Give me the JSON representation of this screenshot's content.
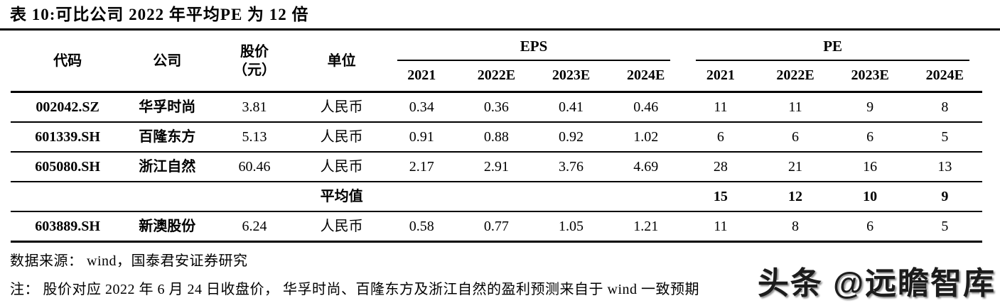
{
  "title": "表 10:可比公司 2022 年平均PE 为 12 倍",
  "table": {
    "col_headers": {
      "code": "代码",
      "company": "公司",
      "price_line1": "股价",
      "price_line2": "（元）",
      "unit": "单位",
      "eps_group": "EPS",
      "pe_group": "PE"
    },
    "years": [
      "2021",
      "2022E",
      "2023E",
      "2024E"
    ],
    "rows": [
      {
        "code": "002042.SZ",
        "company": "华孚时尚",
        "price": "3.81",
        "unit": "人民币",
        "eps": [
          "0.34",
          "0.36",
          "0.41",
          "0.46"
        ],
        "pe": [
          "11",
          "11",
          "9",
          "8"
        ]
      },
      {
        "code": "601339.SH",
        "company": "百隆东方",
        "price": "5.13",
        "unit": "人民币",
        "eps": [
          "0.91",
          "0.88",
          "0.92",
          "1.02"
        ],
        "pe": [
          "6",
          "6",
          "6",
          "5"
        ]
      },
      {
        "code": "605080.SH",
        "company": "浙江自然",
        "price": "60.46",
        "unit": "人民币",
        "eps": [
          "2.17",
          "2.91",
          "3.76",
          "4.69"
        ],
        "pe": [
          "28",
          "21",
          "16",
          "13"
        ]
      },
      {
        "code": "603889.SH",
        "company": "新澳股份",
        "price": "6.24",
        "unit": "人民币",
        "eps": [
          "0.58",
          "0.77",
          "1.05",
          "1.21"
        ],
        "pe": [
          "11",
          "8",
          "6",
          "5"
        ]
      }
    ],
    "average": {
      "label": "平均值",
      "pe": [
        "15",
        "12",
        "10",
        "9"
      ]
    }
  },
  "source": "数据来源： wind，国泰君安证券研究",
  "note": "注： 股价对应 2022 年 6 月 24 日收盘价， 华孚时尚、百隆东方及浙江自然的盈利预测来自于 wind 一致预期",
  "watermark": "头条 @远瞻智库"
}
